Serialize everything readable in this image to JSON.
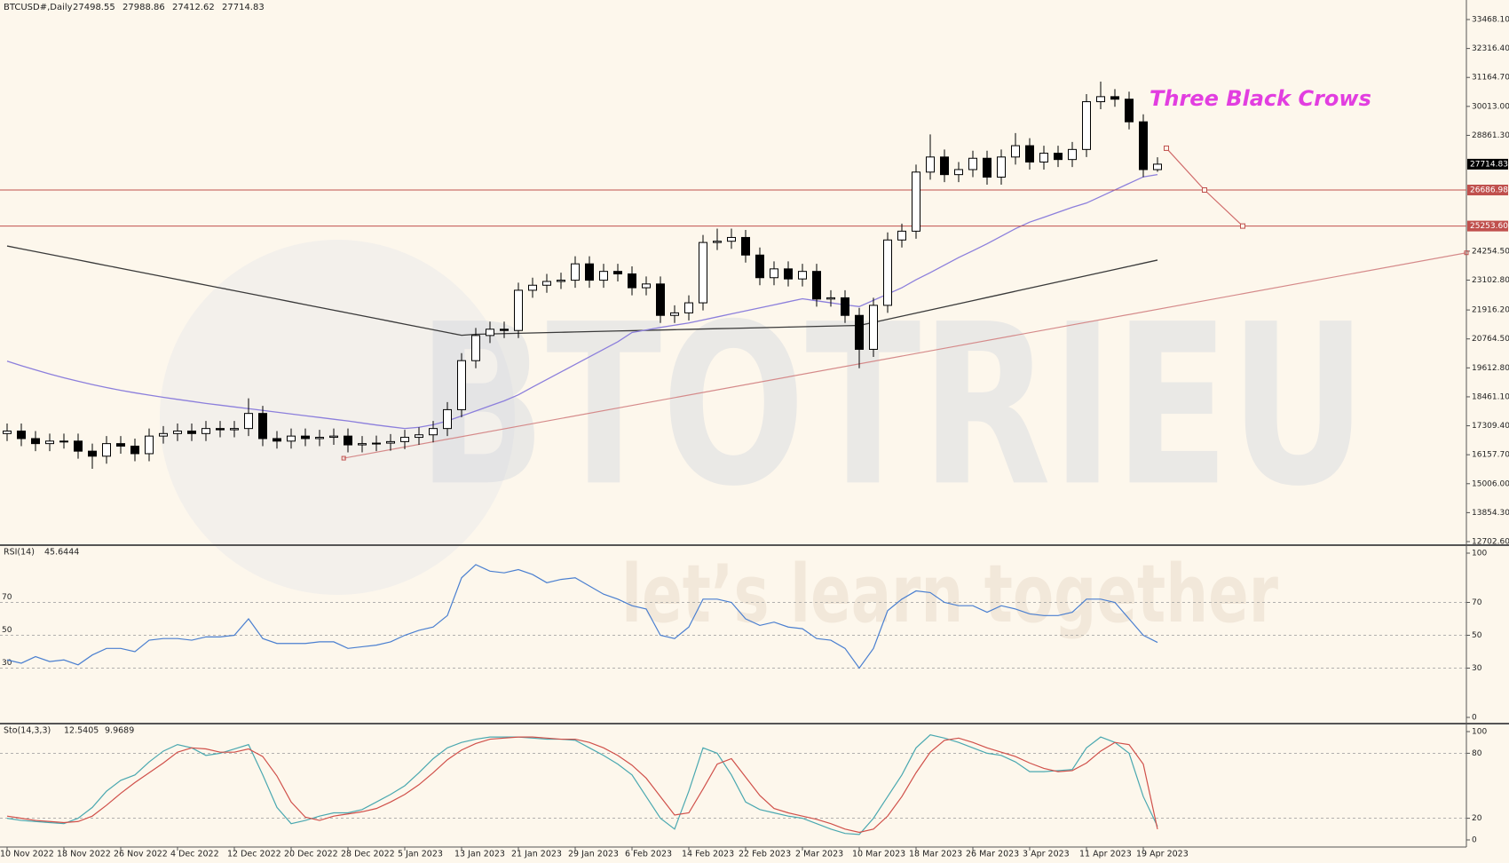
{
  "watermark": {
    "logo": "BTOTRIEU",
    "slogan": "let’s learn together"
  },
  "chart_data": [
    {
      "type": "candlestick",
      "symbol": "BTCUSD#,Daily",
      "header_values": [
        27498.55,
        27988.86,
        27412.62,
        27714.83
      ],
      "annotation": "Three Black Crows",
      "annotation_color": "#e23ee0",
      "categories": [
        "10 Nov 2022",
        null,
        null,
        null,
        "18 Nov 2022",
        null,
        null,
        null,
        "26 Nov 2022",
        null,
        null,
        null,
        "4 Dec 2022",
        null,
        null,
        null,
        "12 Dec 2022",
        null,
        null,
        null,
        "20 Dec 2022",
        null,
        null,
        null,
        "28 Dec 2022",
        null,
        null,
        null,
        "5 Jan 2023",
        null,
        null,
        null,
        "13 Jan 2023",
        null,
        null,
        null,
        "21 Jan 2023",
        null,
        null,
        null,
        "29 Jan 2023",
        null,
        null,
        null,
        "6 Feb 2023",
        null,
        null,
        null,
        "14 Feb 2023",
        null,
        null,
        null,
        "22 Feb 2023",
        null,
        null,
        null,
        "2 Mar 2023",
        null,
        null,
        null,
        "10 Mar 2023",
        null,
        null,
        null,
        "18 Mar 2023",
        null,
        null,
        null,
        "26 Mar 2023",
        null,
        null,
        null,
        "3 Apr 2023",
        null,
        null,
        null,
        "11 Apr 2023",
        null,
        null,
        null,
        "19 Apr 2023",
        null
      ],
      "open": [
        17000,
        17100,
        16800,
        16600,
        16700,
        16700,
        16300,
        16100,
        16600,
        16500,
        16200,
        16900,
        17000,
        17100,
        17000,
        17200,
        17150,
        17200,
        17800,
        16800,
        16700,
        16900,
        16800,
        16850,
        16900,
        16550,
        16600,
        16620,
        16680,
        16850,
        16950,
        17200,
        17950,
        19900,
        20900,
        21150,
        21100,
        22700,
        22900,
        23050,
        23100,
        23750,
        23100,
        23450,
        23350,
        22800,
        22950,
        21700,
        21800,
        22200,
        24600,
        24650,
        24800,
        24100,
        23200,
        23550,
        23150,
        23450,
        22350,
        22400,
        21700,
        20350,
        22100,
        24700,
        25050,
        27400,
        28000,
        27300,
        27500,
        27950,
        27200,
        28000,
        28450,
        27800,
        28150,
        27900,
        28300,
        30200,
        30400,
        30300,
        29400,
        27498.55
      ],
      "high": [
        17400,
        17400,
        17100,
        17000,
        17000,
        17000,
        16600,
        16900,
        16900,
        16800,
        17200,
        17300,
        17400,
        17400,
        17500,
        17500,
        17500,
        18400,
        18100,
        17100,
        17200,
        17200,
        17150,
        17200,
        17200,
        16900,
        16920,
        16980,
        17150,
        17250,
        17500,
        18250,
        20200,
        21200,
        21450,
        21450,
        23000,
        23200,
        23350,
        23400,
        24050,
        24050,
        23750,
        23750,
        23650,
        23250,
        23250,
        22100,
        22500,
        24900,
        25150,
        25150,
        25100,
        24400,
        23850,
        23850,
        23750,
        23750,
        22700,
        22700,
        22000,
        22400,
        25000,
        25350,
        27700,
        28900,
        28300,
        27800,
        28250,
        28250,
        28300,
        28950,
        28750,
        28450,
        28450,
        28600,
        30500,
        31000,
        30700,
        30600,
        29700,
        27988.86
      ],
      "low": [
        16700,
        16500,
        16300,
        16300,
        16400,
        16000,
        15600,
        15800,
        16200,
        15900,
        15900,
        16600,
        16700,
        16700,
        16700,
        16850,
        16850,
        16900,
        16500,
        16400,
        16400,
        16500,
        16500,
        16550,
        16250,
        16250,
        16300,
        16320,
        16380,
        16550,
        16650,
        16900,
        17650,
        19600,
        20600,
        20800,
        20800,
        22400,
        22600,
        22750,
        22800,
        22800,
        22800,
        23050,
        22500,
        22500,
        21400,
        21400,
        21500,
        21900,
        24300,
        24350,
        23800,
        22900,
        22900,
        22850,
        22850,
        22050,
        22050,
        21400,
        19600,
        20050,
        21800,
        24400,
        24750,
        27100,
        27000,
        27000,
        27200,
        26900,
        26900,
        27700,
        27500,
        27500,
        27600,
        27600,
        28000,
        29900,
        30000,
        29100,
        27200,
        27412.62
      ],
      "close": [
        17100,
        16800,
        16600,
        16700,
        16700,
        16300,
        16100,
        16600,
        16500,
        16200,
        16900,
        17000,
        17100,
        17000,
        17200,
        17150,
        17200,
        17800,
        16800,
        16700,
        16900,
        16800,
        16850,
        16900,
        16550,
        16600,
        16620,
        16680,
        16850,
        16950,
        17200,
        17950,
        19900,
        20900,
        21150,
        21100,
        22700,
        22900,
        23050,
        23100,
        23750,
        23100,
        23450,
        23350,
        22800,
        22950,
        21700,
        21800,
        22200,
        24600,
        24650,
        24800,
        24100,
        23200,
        23550,
        23150,
        23450,
        22350,
        22400,
        21700,
        20350,
        22100,
        24700,
        25050,
        27400,
        28000,
        27300,
        27500,
        27950,
        27200,
        28000,
        28450,
        27800,
        28150,
        27900,
        28300,
        30200,
        30400,
        30300,
        29400,
        27500,
        27714.83
      ],
      "up_color": "#ffffff",
      "down_color": "#000000",
      "moving_averages": [
        {
          "color": "#3a3a3a",
          "values": [
            24460,
            24349,
            24238,
            24127,
            24016,
            23905,
            23794,
            23683,
            23572,
            23461,
            23350,
            23239,
            23128,
            23017,
            22906,
            22795,
            22684,
            22573,
            22462,
            22351,
            22240,
            22129,
            22018,
            21907,
            21796,
            21685,
            21574,
            21463,
            21352,
            21241,
            21130,
            21019,
            20908,
            20950,
            20963,
            20976,
            20989,
            21002,
            21015,
            21028,
            21041,
            21054,
            21067,
            21080,
            21093,
            21106,
            21119,
            21132,
            21145,
            21158,
            21171,
            21184,
            21197,
            21210,
            21223,
            21236,
            21249,
            21262,
            21275,
            21288,
            21300,
            21420,
            21544,
            21668,
            21792,
            21916,
            22040,
            22164,
            22288,
            22412,
            22536,
            22660,
            22784,
            22908,
            23032,
            23156,
            23280,
            23404,
            23528,
            23652,
            23776,
            23900
          ]
        },
        {
          "color": "#8c7fdc",
          "values": [
            19880,
            19700,
            19530,
            19370,
            19220,
            19080,
            18950,
            18830,
            18720,
            18620,
            18530,
            18440,
            18360,
            18280,
            18200,
            18130,
            18060,
            17990,
            17920,
            17850,
            17780,
            17710,
            17640,
            17570,
            17500,
            17420,
            17340,
            17270,
            17200,
            17250,
            17350,
            17500,
            17700,
            17900,
            18100,
            18300,
            18540,
            18850,
            19150,
            19450,
            19750,
            20050,
            20350,
            20650,
            21020,
            21120,
            21220,
            21310,
            21400,
            21520,
            21640,
            21760,
            21880,
            22000,
            22120,
            22240,
            22360,
            22280,
            22200,
            22120,
            22050,
            22300,
            22550,
            22800,
            23120,
            23400,
            23700,
            24000,
            24270,
            24550,
            24850,
            25150,
            25410,
            25600,
            25800,
            26000,
            26170,
            26430,
            26690,
            26950,
            27210,
            27300
          ]
        }
      ],
      "levels": [
        {
          "value": 26686.98,
          "label": "26686.98"
        },
        {
          "value": 25253.6,
          "label": "25253.60"
        }
      ],
      "level_color": "#c0504d",
      "last_price": {
        "value": 27714.83,
        "label": "27714.83"
      },
      "trendline": [
        16020,
        24190
      ],
      "projection": [
        28350,
        26686.98,
        25253.6
      ],
      "ylim": [
        12702.6,
        33468.1
      ],
      "yticks": [
        {
          "value": 12702.6,
          "label": "12702.60"
        },
        {
          "value": 13854.3,
          "label": "13854.30"
        },
        {
          "value": 15006,
          "label": "15006.00"
        },
        {
          "value": 16157.7,
          "label": "16157.70"
        },
        {
          "value": 17309.4,
          "label": "17309.40"
        },
        {
          "value": 18461.1,
          "label": "18461.10"
        },
        {
          "value": 19612.8,
          "label": "19612.80"
        },
        {
          "value": 20764.5,
          "label": "20764.50"
        },
        {
          "value": 21916.2,
          "label": "21916.20"
        },
        {
          "value": 23102.8,
          "label": "23102.80"
        },
        {
          "value": 24254.5,
          "label": "24254.50"
        },
        {
          "value": 28861.3,
          "label": "28861.30"
        },
        {
          "value": 30013,
          "label": "30013.00"
        },
        {
          "value": 31164.7,
          "label": "31164.70"
        },
        {
          "value": 32316.4,
          "label": "32316.40"
        },
        {
          "value": 33468.1,
          "label": "33468.10"
        }
      ]
    },
    {
      "type": "line",
      "title": "RSI(14)",
      "header_values": [
        45.6444
      ],
      "grid": true,
      "series": [
        {
          "color": "#4a7fd0",
          "values": [
            35,
            33,
            37,
            34,
            35,
            32,
            38,
            42,
            42,
            40,
            47,
            48,
            48,
            47,
            49,
            49,
            50,
            60,
            48,
            45,
            45,
            45,
            46,
            46,
            42,
            43,
            44,
            46,
            50,
            53,
            55,
            62,
            85,
            93,
            89,
            88,
            90,
            87,
            82,
            84,
            85,
            80,
            75,
            72,
            68,
            66,
            50,
            48,
            55,
            72,
            72,
            70,
            60,
            56,
            58,
            55,
            54,
            48,
            47,
            42,
            30,
            42,
            65,
            72,
            77,
            76,
            70,
            68,
            68,
            64,
            68,
            66,
            63,
            62,
            62,
            64,
            72,
            72,
            70,
            60,
            50,
            45.6444
          ]
        }
      ],
      "ylim": [
        0,
        100
      ],
      "yticks": [
        0,
        30,
        50,
        70,
        100
      ]
    },
    {
      "type": "line",
      "title": "Sto(14,3,3)",
      "header_values": [
        12.5405,
        9.9689
      ],
      "grid": true,
      "series": [
        {
          "color": "#4aa8b0",
          "values": [
            20,
            18,
            17,
            16,
            15,
            20,
            30,
            45,
            55,
            60,
            72,
            82,
            88,
            85,
            78,
            80,
            84,
            88,
            60,
            30,
            15,
            18,
            22,
            25,
            25,
            28,
            35,
            42,
            50,
            62,
            75,
            85,
            90,
            93,
            95,
            95,
            95,
            94,
            93,
            93,
            92,
            85,
            78,
            70,
            60,
            40,
            20,
            10,
            45,
            85,
            80,
            60,
            35,
            28,
            25,
            22,
            20,
            15,
            10,
            6,
            5,
            20,
            40,
            60,
            85,
            97,
            94,
            90,
            85,
            80,
            78,
            72,
            63,
            63,
            64,
            65,
            85,
            95,
            90,
            80,
            40,
            12.5405
          ]
        },
        {
          "color": "#d0504a",
          "values": [
            22,
            20,
            18,
            17,
            16,
            17,
            22,
            32,
            43,
            53,
            62,
            71,
            81,
            85,
            84,
            81,
            81,
            84,
            77,
            59,
            35,
            21,
            18,
            22,
            24,
            26,
            29,
            35,
            42,
            51,
            62,
            74,
            83,
            89,
            93,
            94,
            95,
            95,
            94,
            93,
            93,
            90,
            85,
            78,
            69,
            57,
            40,
            23,
            25,
            47,
            70,
            75,
            58,
            41,
            29,
            25,
            22,
            19,
            15,
            10,
            7,
            10,
            22,
            40,
            62,
            81,
            92,
            94,
            90,
            85,
            81,
            77,
            71,
            66,
            63,
            64,
            71,
            82,
            90,
            88,
            70,
            9.9689
          ]
        }
      ],
      "ylim": [
        0,
        100
      ],
      "yticks": [
        0,
        20,
        80,
        100
      ]
    }
  ]
}
